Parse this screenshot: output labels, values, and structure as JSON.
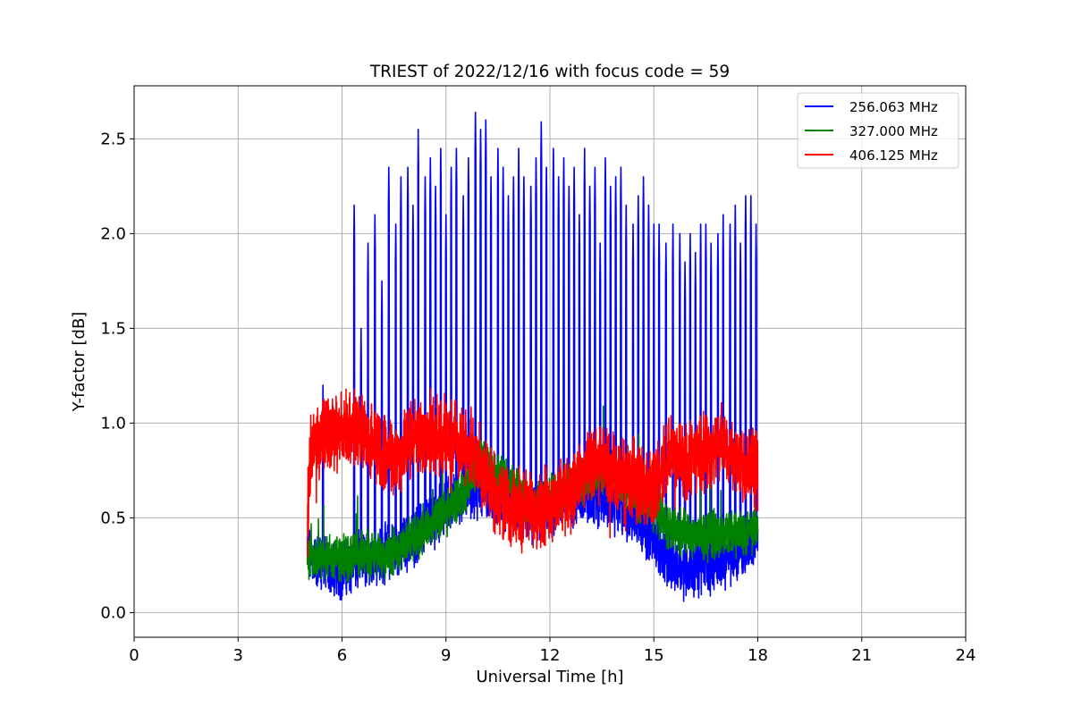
{
  "chart_data": {
    "type": "line",
    "title": "TRIEST of 2022/12/16 with focus code = 59",
    "xlabel": "Universal Time [h]",
    "ylabel": "Y-factor [dB]",
    "xlim": [
      0,
      24
    ],
    "ylim": [
      -0.13,
      2.78
    ],
    "xticks": [
      0,
      3,
      6,
      9,
      12,
      15,
      18,
      21,
      24
    ],
    "yticks": [
      0.0,
      0.5,
      1.0,
      1.5,
      2.0,
      2.5
    ],
    "xtick_labels": [
      "0",
      "3",
      "6",
      "9",
      "12",
      "15",
      "18",
      "21",
      "24"
    ],
    "ytick_labels": [
      "0.0",
      "0.5",
      "1.0",
      "1.5",
      "2.0",
      "2.5"
    ],
    "grid": true,
    "legend_position": "top-right",
    "x_start": 5.0,
    "x_end": 18.0,
    "series": [
      {
        "name": "256.063 MHz",
        "color": "#0000ff",
        "profile_x": [
          5.0,
          5.5,
          6.0,
          6.5,
          7.0,
          7.5,
          8.0,
          8.5,
          9.0,
          9.5,
          10.0,
          10.5,
          11.0,
          11.5,
          12.0,
          12.5,
          13.0,
          13.5,
          14.0,
          14.5,
          15.0,
          15.5,
          16.0,
          16.5,
          17.0,
          17.5,
          18.0
        ],
        "profile_baseline": [
          0.3,
          0.25,
          0.22,
          0.27,
          0.3,
          0.33,
          0.38,
          0.48,
          0.55,
          0.62,
          0.65,
          0.6,
          0.55,
          0.5,
          0.55,
          0.6,
          0.62,
          0.58,
          0.55,
          0.5,
          0.4,
          0.25,
          0.22,
          0.25,
          0.28,
          0.32,
          0.4
        ],
        "spikes": [
          {
            "x": 5.45,
            "y": 1.2
          },
          {
            "x": 6.35,
            "y": 2.15
          },
          {
            "x": 6.55,
            "y": 1.5
          },
          {
            "x": 6.75,
            "y": 1.95
          },
          {
            "x": 6.95,
            "y": 2.1
          },
          {
            "x": 7.15,
            "y": 1.75
          },
          {
            "x": 7.35,
            "y": 2.35
          },
          {
            "x": 7.55,
            "y": 2.05
          },
          {
            "x": 7.7,
            "y": 2.3
          },
          {
            "x": 7.9,
            "y": 2.35
          },
          {
            "x": 8.05,
            "y": 2.15
          },
          {
            "x": 8.2,
            "y": 2.55
          },
          {
            "x": 8.4,
            "y": 2.3
          },
          {
            "x": 8.55,
            "y": 2.4
          },
          {
            "x": 8.7,
            "y": 2.25
          },
          {
            "x": 8.85,
            "y": 2.45
          },
          {
            "x": 9.0,
            "y": 2.1
          },
          {
            "x": 9.15,
            "y": 2.35
          },
          {
            "x": 9.3,
            "y": 2.45
          },
          {
            "x": 9.5,
            "y": 2.2
          },
          {
            "x": 9.65,
            "y": 2.4
          },
          {
            "x": 9.85,
            "y": 2.64
          },
          {
            "x": 10.0,
            "y": 2.55
          },
          {
            "x": 10.15,
            "y": 2.6
          },
          {
            "x": 10.3,
            "y": 2.3
          },
          {
            "x": 10.5,
            "y": 2.45
          },
          {
            "x": 10.65,
            "y": 2.35
          },
          {
            "x": 10.8,
            "y": 2.2
          },
          {
            "x": 10.95,
            "y": 2.3
          },
          {
            "x": 11.1,
            "y": 2.45
          },
          {
            "x": 11.25,
            "y": 2.3
          },
          {
            "x": 11.45,
            "y": 2.25
          },
          {
            "x": 11.6,
            "y": 2.4
          },
          {
            "x": 11.75,
            "y": 2.59
          },
          {
            "x": 11.9,
            "y": 2.35
          },
          {
            "x": 12.1,
            "y": 2.45
          },
          {
            "x": 12.25,
            "y": 2.3
          },
          {
            "x": 12.4,
            "y": 2.4
          },
          {
            "x": 12.55,
            "y": 2.25
          },
          {
            "x": 12.7,
            "y": 2.35
          },
          {
            "x": 12.85,
            "y": 2.1
          },
          {
            "x": 13.0,
            "y": 2.45
          },
          {
            "x": 13.15,
            "y": 2.25
          },
          {
            "x": 13.3,
            "y": 2.35
          },
          {
            "x": 13.45,
            "y": 1.95
          },
          {
            "x": 13.6,
            "y": 2.4
          },
          {
            "x": 13.75,
            "y": 2.25
          },
          {
            "x": 13.9,
            "y": 2.3
          },
          {
            "x": 14.05,
            "y": 2.35
          },
          {
            "x": 14.2,
            "y": 2.15
          },
          {
            "x": 14.4,
            "y": 2.05
          },
          {
            "x": 14.55,
            "y": 2.2
          },
          {
            "x": 14.7,
            "y": 2.3
          },
          {
            "x": 14.85,
            "y": 2.15
          },
          {
            "x": 15.0,
            "y": 2.05
          },
          {
            "x": 15.15,
            "y": 2.05
          },
          {
            "x": 15.35,
            "y": 1.95
          },
          {
            "x": 15.55,
            "y": 2.05
          },
          {
            "x": 15.75,
            "y": 2.0
          },
          {
            "x": 15.9,
            "y": 1.85
          },
          {
            "x": 16.05,
            "y": 2.0
          },
          {
            "x": 16.2,
            "y": 1.9
          },
          {
            "x": 16.35,
            "y": 2.05
          },
          {
            "x": 16.5,
            "y": 2.05
          },
          {
            "x": 16.65,
            "y": 1.95
          },
          {
            "x": 16.85,
            "y": 2.0
          },
          {
            "x": 17.0,
            "y": 2.1
          },
          {
            "x": 17.2,
            "y": 2.05
          },
          {
            "x": 17.35,
            "y": 2.15
          },
          {
            "x": 17.5,
            "y": 1.95
          },
          {
            "x": 17.65,
            "y": 2.2
          },
          {
            "x": 17.8,
            "y": 2.2
          },
          {
            "x": 17.95,
            "y": 2.05
          }
        ]
      },
      {
        "name": "327.000 MHz",
        "color": "#008000",
        "profile_x": [
          5.0,
          5.5,
          6.0,
          6.5,
          7.0,
          7.5,
          8.0,
          8.5,
          9.0,
          9.5,
          10.0,
          10.5,
          11.0,
          11.5,
          12.0,
          12.5,
          13.0,
          13.5,
          14.0,
          14.5,
          15.0,
          15.5,
          16.0,
          16.5,
          17.0,
          17.5,
          18.0
        ],
        "profile_baseline": [
          0.28,
          0.3,
          0.28,
          0.32,
          0.3,
          0.33,
          0.38,
          0.45,
          0.52,
          0.62,
          0.8,
          0.72,
          0.65,
          0.55,
          0.6,
          0.65,
          0.7,
          0.75,
          0.7,
          0.62,
          0.55,
          0.45,
          0.42,
          0.4,
          0.42,
          0.42,
          0.45
        ],
        "spikes": []
      },
      {
        "name": "406.125 MHz",
        "color": "#ff0000",
        "profile_x": [
          5.0,
          5.1,
          5.5,
          6.0,
          6.5,
          7.0,
          7.5,
          8.0,
          8.5,
          9.0,
          9.5,
          10.0,
          10.5,
          11.0,
          11.5,
          12.0,
          12.5,
          13.0,
          13.5,
          14.0,
          14.5,
          15.0,
          15.5,
          16.0,
          16.5,
          17.0,
          17.5,
          18.0
        ],
        "profile_baseline": [
          0.5,
          0.85,
          0.95,
          0.95,
          0.95,
          0.9,
          0.82,
          0.9,
          0.95,
          0.92,
          0.9,
          0.8,
          0.6,
          0.55,
          0.55,
          0.58,
          0.6,
          0.75,
          0.78,
          0.72,
          0.7,
          0.65,
          0.85,
          0.8,
          0.85,
          0.9,
          0.8,
          0.75
        ],
        "spikes": []
      }
    ]
  }
}
